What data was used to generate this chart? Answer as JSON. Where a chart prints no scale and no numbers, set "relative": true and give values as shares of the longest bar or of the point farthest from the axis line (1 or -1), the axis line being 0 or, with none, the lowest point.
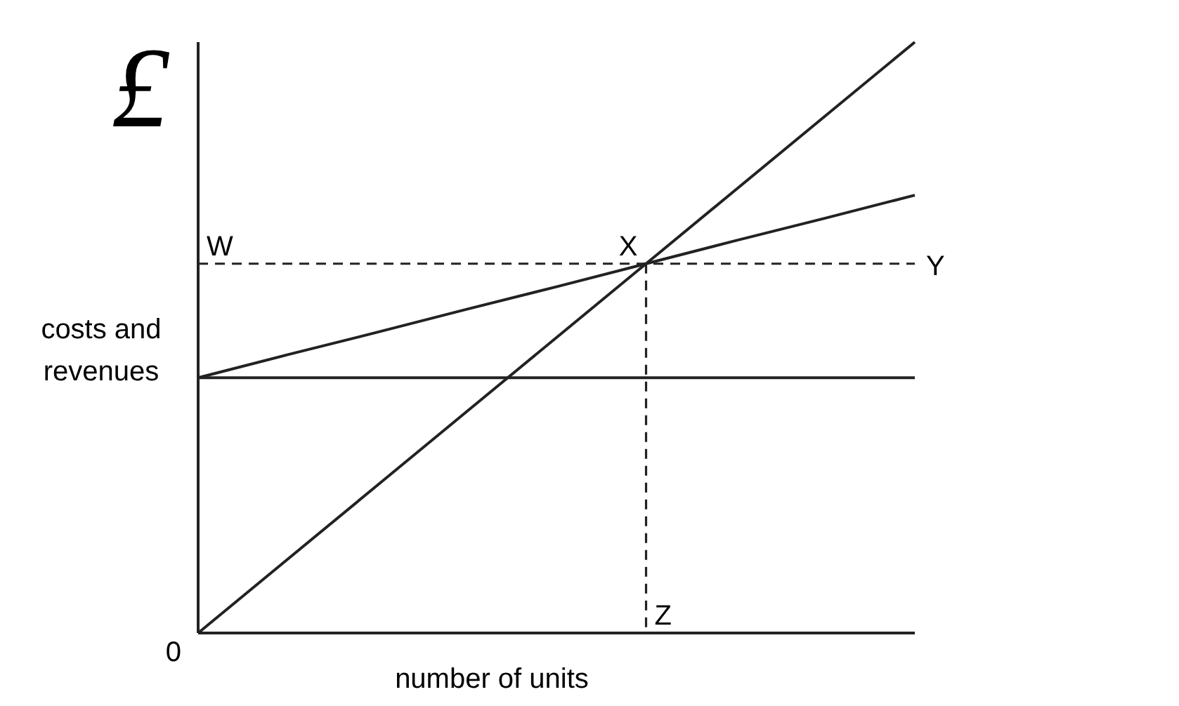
{
  "chart_data": {
    "type": "line",
    "relative": true,
    "xlabel": "number of units",
    "ylabel": "costs and revenues",
    "categories": [
      null,
      null,
      null,
      null,
      null,
      null,
      null,
      null,
      null
    ],
    "line_style": "solid",
    "series": [
      {
        "color": "#222222",
        "values": [
          0,
          0.125,
          0.25,
          0.375,
          0.5,
          0.625,
          0.75,
          0.875,
          1
        ]
      },
      {
        "color": "#222222",
        "values": [
          0.432,
          0.471,
          0.509,
          0.548,
          0.586,
          0.625,
          0.664,
          0.702,
          0.741
        ]
      },
      {
        "color": "#222222",
        "values": [
          0.432,
          0.432,
          0.432,
          0.432,
          0.432,
          0.432,
          0.432,
          0.432,
          0.432
        ]
      }
    ],
    "ref_lines": [
      {
        "axis": "y",
        "value": 0.625,
        "line_style": "dashed",
        "color": "#222222"
      }
    ],
    "annotations": [
      "£",
      "W",
      "X",
      "Y",
      "Z",
      "0"
    ]
  }
}
